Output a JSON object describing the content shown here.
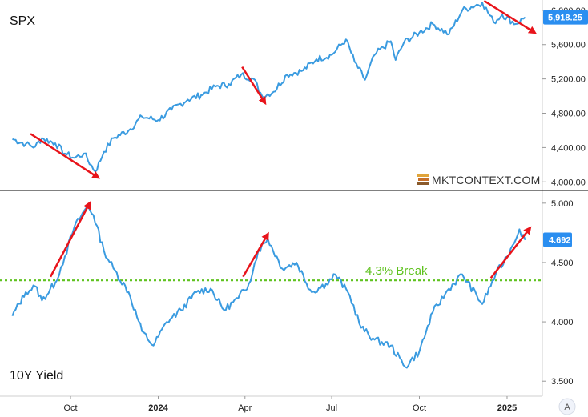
{
  "chart_data": [
    {
      "type": "line",
      "title": "SPX",
      "ylim": [
        3900,
        6120
      ],
      "yticks": [
        "6,000.00",
        "5,600.00",
        "5,200.00",
        "4,800.00",
        "4,400.00",
        "4,000.00"
      ],
      "ytick_values": [
        6000,
        5600,
        5200,
        4800,
        4400,
        4000
      ],
      "last_value": 5918.25,
      "last_value_label": "5,918.25",
      "line_color": "#3a9be0",
      "series": [
        {
          "x": [
            "2023-08-01",
            "2023-08-15",
            "2023-08-25",
            "2023-09-01",
            "2023-09-15",
            "2023-09-25",
            "2023-10-05",
            "2023-10-15",
            "2023-10-27",
            "2023-11-05",
            "2023-11-15",
            "2023-12-01",
            "2023-12-15",
            "2024-01-01",
            "2024-01-15",
            "2024-02-01",
            "2024-02-15",
            "2024-03-01",
            "2024-03-15",
            "2024-03-28",
            "2024-04-10",
            "2024-04-19",
            "2024-05-01",
            "2024-05-15",
            "2024-06-01",
            "2024-06-15",
            "2024-07-01",
            "2024-07-16",
            "2024-07-25",
            "2024-08-05",
            "2024-08-15",
            "2024-09-01",
            "2024-09-06",
            "2024-09-15",
            "2024-10-01",
            "2024-10-15",
            "2024-11-01",
            "2024-11-15",
            "2024-12-06",
            "2024-12-18",
            "2024-12-27",
            "2025-01-10",
            "2025-01-20"
          ],
          "values": [
            4500,
            4440,
            4410,
            4510,
            4450,
            4330,
            4280,
            4330,
            4120,
            4350,
            4510,
            4600,
            4760,
            4720,
            4840,
            4960,
            5010,
            5110,
            5140,
            5250,
            5200,
            5000,
            5050,
            5250,
            5300,
            5430,
            5480,
            5660,
            5400,
            5190,
            5480,
            5640,
            5420,
            5630,
            5740,
            5840,
            5720,
            6000,
            6090,
            5860,
            5950,
            5840,
            5918
          ]
        }
      ],
      "annotations": [
        {
          "type": "arrow",
          "from": [
            "2023-08-20",
            4560
          ],
          "to": [
            "2023-10-30",
            4050
          ]
        },
        {
          "type": "arrow",
          "from": [
            "2024-03-29",
            5340
          ],
          "to": [
            "2024-04-22",
            4920
          ]
        },
        {
          "type": "arrow",
          "from": [
            "2024-12-08",
            6110
          ],
          "to": [
            "2025-01-30",
            5740
          ]
        }
      ]
    },
    {
      "type": "line",
      "title": "10Y Yield",
      "ylim": [
        3.38,
        5.1
      ],
      "yticks": [
        "5.000",
        "4.500",
        "4.000",
        "3.500"
      ],
      "ytick_values": [
        5.0,
        4.5,
        4.0,
        3.5
      ],
      "last_value": 4.692,
      "last_value_label": "4.692",
      "line_color": "#3a9be0",
      "series": [
        {
          "x": [
            "2023-08-01",
            "2023-08-15",
            "2023-08-25",
            "2023-09-01",
            "2023-09-15",
            "2023-09-25",
            "2023-10-05",
            "2023-10-19",
            "2023-10-25",
            "2023-11-05",
            "2023-11-15",
            "2023-12-01",
            "2023-12-15",
            "2023-12-27",
            "2024-01-10",
            "2024-01-25",
            "2024-02-10",
            "2024-02-25",
            "2024-03-10",
            "2024-03-25",
            "2024-04-05",
            "2024-04-15",
            "2024-04-25",
            "2024-05-10",
            "2024-05-25",
            "2024-06-10",
            "2024-06-25",
            "2024-07-05",
            "2024-07-20",
            "2024-08-01",
            "2024-08-15",
            "2024-09-01",
            "2024-09-16",
            "2024-10-01",
            "2024-10-15",
            "2024-11-01",
            "2024-11-15",
            "2024-12-06",
            "2024-12-20",
            "2025-01-01",
            "2025-01-14",
            "2025-01-20"
          ],
          "values": [
            4.05,
            4.25,
            4.3,
            4.18,
            4.33,
            4.55,
            4.8,
            4.98,
            4.9,
            4.6,
            4.45,
            4.25,
            3.92,
            3.8,
            4.0,
            4.1,
            4.25,
            4.28,
            4.1,
            4.2,
            4.32,
            4.6,
            4.7,
            4.45,
            4.5,
            4.25,
            4.32,
            4.4,
            4.22,
            3.95,
            3.85,
            3.8,
            3.62,
            3.75,
            4.08,
            4.28,
            4.4,
            4.15,
            4.4,
            4.55,
            4.78,
            4.69
          ]
        }
      ],
      "reference_line": {
        "value": 4.35,
        "label": "4.3% Break",
        "color": "#5fc21f"
      },
      "annotations": [
        {
          "type": "arrow",
          "from": [
            "2023-09-10",
            4.38
          ],
          "to": [
            "2023-10-21",
            5.0
          ]
        },
        {
          "type": "arrow",
          "from": [
            "2024-03-30",
            4.38
          ],
          "to": [
            "2024-04-25",
            4.74
          ]
        },
        {
          "type": "arrow",
          "from": [
            "2024-12-15",
            4.37
          ],
          "to": [
            "2025-01-25",
            4.79
          ]
        }
      ]
    }
  ],
  "x_axis": {
    "ticks": [
      {
        "label": "Oct",
        "date": "2023-10-01",
        "bold": false
      },
      {
        "label": "2024",
        "date": "2024-01-01",
        "bold": true
      },
      {
        "label": "Apr",
        "date": "2024-04-01",
        "bold": false
      },
      {
        "label": "Jul",
        "date": "2024-07-01",
        "bold": false
      },
      {
        "label": "Oct",
        "date": "2024-10-01",
        "bold": false
      },
      {
        "label": "2025",
        "date": "2025-01-01",
        "bold": true
      }
    ],
    "range": [
      "2023-07-19",
      "2025-02-07"
    ]
  },
  "logo": {
    "text": "MKTCONTEXT.COM"
  },
  "scale_button": {
    "label": "A"
  },
  "colors": {
    "arrow": "#e8141b",
    "badge": "#2a8ef0",
    "grid": "#000000"
  }
}
